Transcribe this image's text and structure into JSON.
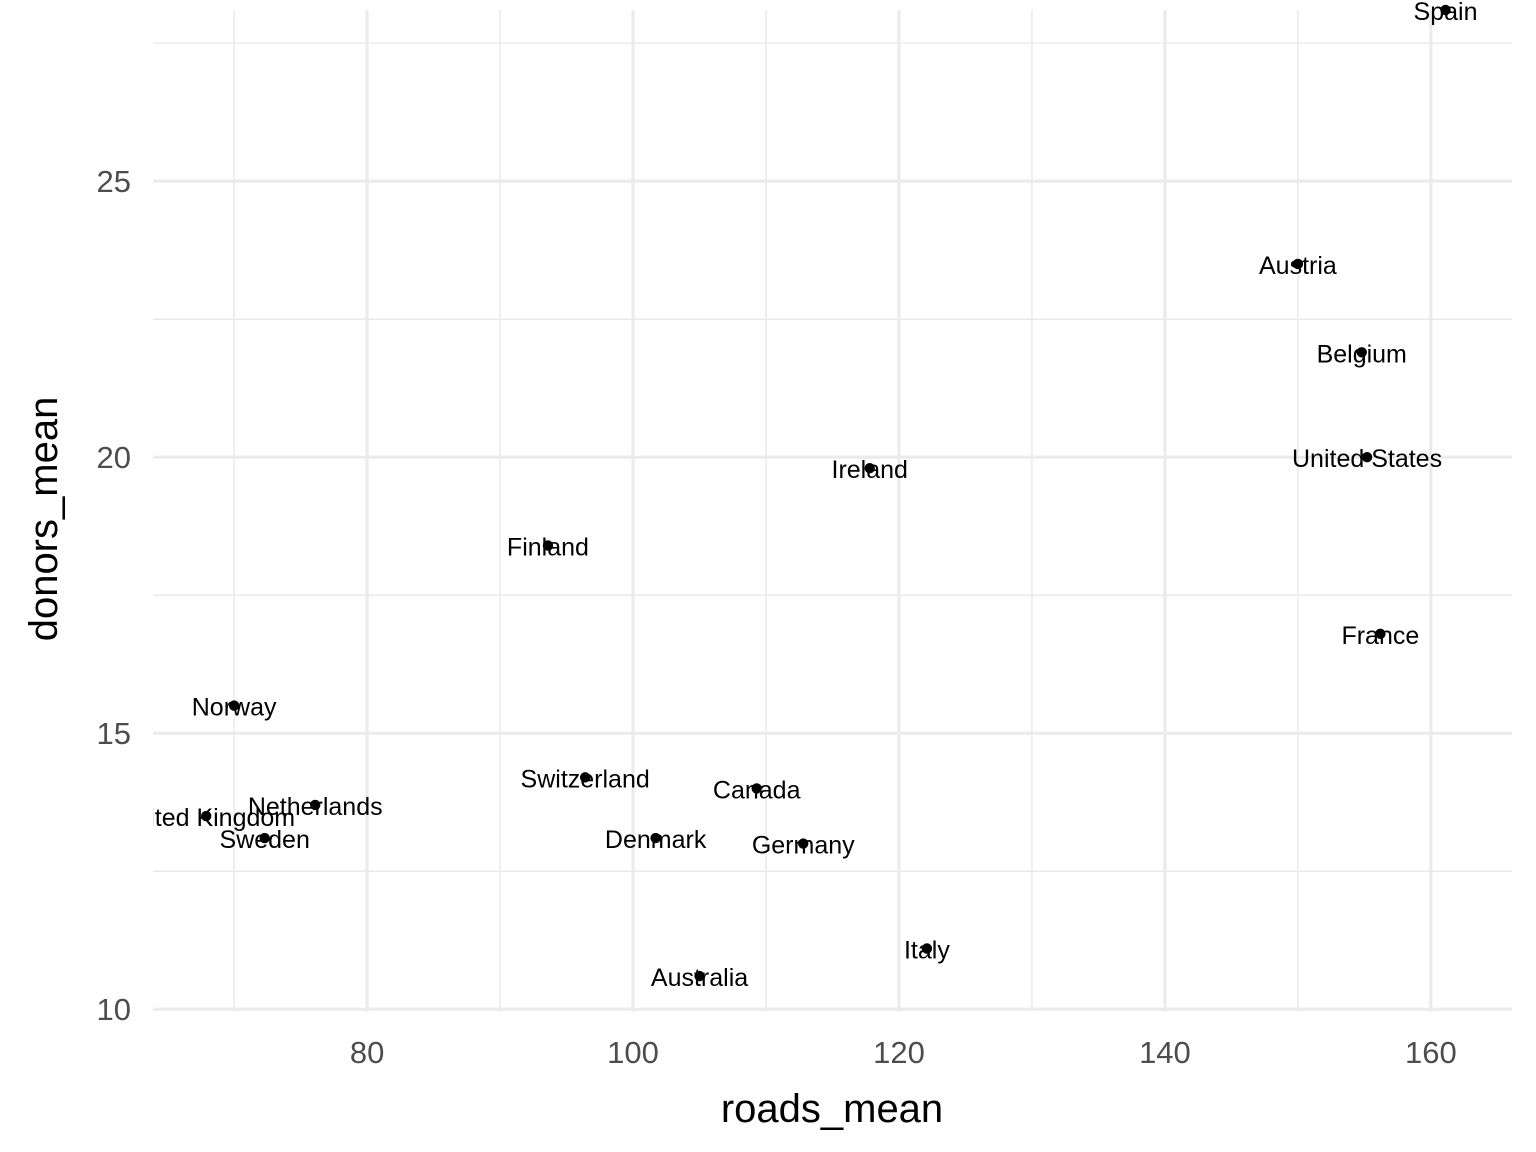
{
  "chart_data": {
    "type": "scatter",
    "title": "",
    "xlabel": "roads_mean",
    "ylabel": "donors_mean",
    "xlim": [
      63.9,
      166.1
    ],
    "ylim": [
      9.95,
      28.1
    ],
    "x_ticks": [
      80,
      100,
      120,
      140,
      160
    ],
    "y_ticks": [
      10,
      15,
      20,
      25
    ],
    "grid": true,
    "legend": "none",
    "point_color": "#000000",
    "grid_color": "#ebebeb",
    "points": [
      {
        "label": "Spain",
        "x": 161.1,
        "y": 28.1
      },
      {
        "label": "Austria",
        "x": 150.0,
        "y": 23.5
      },
      {
        "label": "Belgium",
        "x": 154.8,
        "y": 21.9
      },
      {
        "label": "United States",
        "x": 155.2,
        "y": 20.0
      },
      {
        "label": "Ireland",
        "x": 117.8,
        "y": 19.8
      },
      {
        "label": "Finland",
        "x": 93.6,
        "y": 18.4
      },
      {
        "label": "France",
        "x": 156.2,
        "y": 16.8
      },
      {
        "label": "Norway",
        "x": 70.0,
        "y": 15.5
      },
      {
        "label": "Switzerland",
        "x": 96.4,
        "y": 14.2
      },
      {
        "label": "Canada",
        "x": 109.3,
        "y": 14.0
      },
      {
        "label": "Netherlands",
        "x": 76.1,
        "y": 13.7
      },
      {
        "label": "United Kingdom",
        "x": 67.9,
        "y": 13.5
      },
      {
        "label": "Sweden",
        "x": 72.3,
        "y": 13.1
      },
      {
        "label": "Denmark",
        "x": 101.7,
        "y": 13.1
      },
      {
        "label": "Germany",
        "x": 112.8,
        "y": 13.0
      },
      {
        "label": "Italy",
        "x": 122.1,
        "y": 11.1
      },
      {
        "label": "Australia",
        "x": 105.0,
        "y": 10.6
      }
    ]
  }
}
